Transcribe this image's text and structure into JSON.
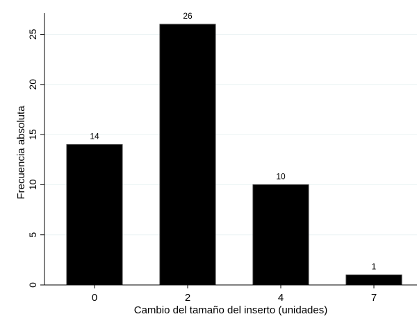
{
  "chart_data": {
    "type": "bar",
    "title": "",
    "xlabel": "Cambio del tamaño del inserto (unidades)",
    "ylabel": "Frecuencia absoluta",
    "categories": [
      "0",
      "2",
      "4",
      "7"
    ],
    "values": [
      14,
      26,
      10,
      1
    ],
    "data_labels": [
      "14",
      "26",
      "10",
      "1"
    ],
    "yticks": [
      0,
      5,
      10,
      15,
      20,
      25
    ],
    "ylim": [
      0,
      26.9
    ],
    "grid": true,
    "bar_color": "#000000",
    "grid_color": "#eaf2f3"
  }
}
